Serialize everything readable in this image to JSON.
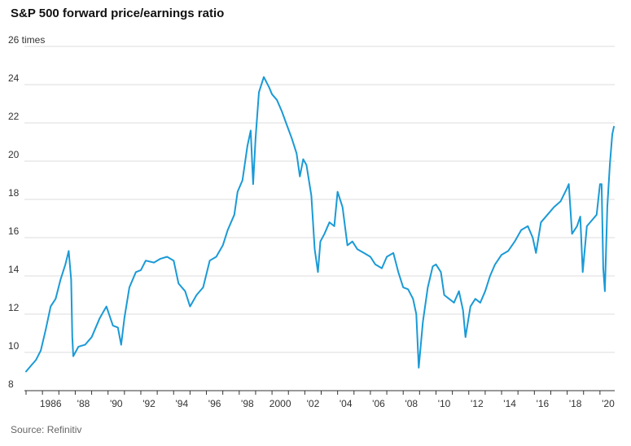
{
  "chart_data": {
    "type": "line",
    "title": "S&P 500 forward price/earnings ratio",
    "source": "Source: Refinitiv",
    "ylim": [
      8,
      26
    ],
    "xlim": [
      1985.0,
      2020.9
    ],
    "y_ticks": [
      8,
      10,
      12,
      14,
      16,
      18,
      20,
      22,
      24,
      26
    ],
    "y_tick_labels": [
      "8",
      "10",
      "12",
      "14",
      "16",
      "18",
      "20",
      "22",
      "24",
      "26 times"
    ],
    "x_tick_labels": [
      {
        "x": 1986,
        "label": "1986"
      },
      {
        "x": 1988,
        "label": "'88"
      },
      {
        "x": 1990,
        "label": "'90"
      },
      {
        "x": 1992,
        "label": "'92"
      },
      {
        "x": 1994,
        "label": "'94"
      },
      {
        "x": 1996,
        "label": "'96"
      },
      {
        "x": 1998,
        "label": "'98"
      },
      {
        "x": 2000,
        "label": "2000"
      },
      {
        "x": 2002,
        "label": "'02"
      },
      {
        "x": 2004,
        "label": "'04"
      },
      {
        "x": 2006,
        "label": "'06"
      },
      {
        "x": 2008,
        "label": "'08"
      },
      {
        "x": 2010,
        "label": "'10"
      },
      {
        "x": 2012,
        "label": "'12"
      },
      {
        "x": 2014,
        "label": "'14"
      },
      {
        "x": 2016,
        "label": "'16"
      },
      {
        "x": 2018,
        "label": "'18"
      },
      {
        "x": 2020,
        "label": "'20"
      }
    ],
    "grid": true,
    "series": [
      {
        "color": "#1a9ad6",
        "x": [
          1985.0,
          1985.3,
          1985.6,
          1985.9,
          1986.2,
          1986.5,
          1986.8,
          1987.1,
          1987.4,
          1987.6,
          1987.75,
          1987.82,
          1987.88,
          1988.2,
          1988.6,
          1989.0,
          1989.5,
          1989.9,
          1990.3,
          1990.6,
          1990.8,
          1991.0,
          1991.3,
          1991.7,
          1992.0,
          1992.3,
          1992.8,
          1993.2,
          1993.6,
          1994.0,
          1994.3,
          1994.7,
          1995.0,
          1995.4,
          1995.8,
          1996.2,
          1996.6,
          1997.0,
          1997.3,
          1997.7,
          1997.9,
          1998.2,
          1998.5,
          1998.7,
          1998.85,
          1999.0,
          1999.2,
          1999.5,
          1999.8,
          2000.0,
          2000.3,
          2000.6,
          2000.9,
          2001.2,
          2001.5,
          2001.7,
          2001.9,
          2002.1,
          2002.4,
          2002.6,
          2002.8,
          2002.95,
          2003.2,
          2003.5,
          2003.8,
          2004.0,
          2004.3,
          2004.6,
          2004.9,
          2005.2,
          2005.6,
          2006.0,
          2006.3,
          2006.7,
          2007.0,
          2007.4,
          2007.7,
          2008.0,
          2008.3,
          2008.6,
          2008.8,
          2008.95,
          2009.2,
          2009.5,
          2009.8,
          2010.0,
          2010.3,
          2010.5,
          2010.8,
          2011.1,
          2011.4,
          2011.65,
          2011.8,
          2012.1,
          2012.4,
          2012.7,
          2013.0,
          2013.3,
          2013.6,
          2014.0,
          2014.4,
          2014.8,
          2015.2,
          2015.6,
          2015.9,
          2016.1,
          2016.4,
          2016.8,
          2017.2,
          2017.6,
          2018.0,
          2018.1,
          2018.3,
          2018.6,
          2018.8,
          2018.95,
          2019.2,
          2019.5,
          2019.8,
          2020.0,
          2020.1,
          2020.2,
          2020.3,
          2020.45,
          2020.6,
          2020.75,
          2020.85
        ],
        "values": [
          9.0,
          9.3,
          9.6,
          10.1,
          11.2,
          12.4,
          12.8,
          13.8,
          14.6,
          15.3,
          13.8,
          10.8,
          9.8,
          10.3,
          10.4,
          10.8,
          11.8,
          12.4,
          11.4,
          11.3,
          10.4,
          11.8,
          13.4,
          14.2,
          14.3,
          14.8,
          14.7,
          14.9,
          15.0,
          14.8,
          13.6,
          13.2,
          12.4,
          13.0,
          13.4,
          14.8,
          15.0,
          15.6,
          16.4,
          17.2,
          18.4,
          19.0,
          20.8,
          21.6,
          18.8,
          21.2,
          23.6,
          24.4,
          23.9,
          23.5,
          23.2,
          22.6,
          21.9,
          21.2,
          20.4,
          19.2,
          20.1,
          19.8,
          18.2,
          15.4,
          14.2,
          15.8,
          16.2,
          16.8,
          16.6,
          18.4,
          17.6,
          15.6,
          15.8,
          15.4,
          15.2,
          15.0,
          14.6,
          14.4,
          15.0,
          15.2,
          14.2,
          13.4,
          13.3,
          12.8,
          12.0,
          9.2,
          11.6,
          13.4,
          14.5,
          14.6,
          14.2,
          13.0,
          12.8,
          12.6,
          13.2,
          12.2,
          10.8,
          12.4,
          12.8,
          12.6,
          13.2,
          14.0,
          14.6,
          15.1,
          15.3,
          15.8,
          16.4,
          16.6,
          16.0,
          15.2,
          16.8,
          17.2,
          17.6,
          17.9,
          18.6,
          18.8,
          16.2,
          16.6,
          17.1,
          14.2,
          16.6,
          16.9,
          17.2,
          18.8,
          18.8,
          14.4,
          13.2,
          17.6,
          19.8,
          21.4,
          21.8
        ]
      }
    ]
  }
}
